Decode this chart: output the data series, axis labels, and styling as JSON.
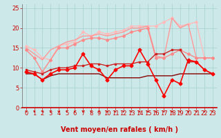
{
  "xlabel": "Vent moyen/en rafales ( km/h )",
  "bg_color": "#cce8e8",
  "grid_color": "#aad4d4",
  "xlim": [
    -0.5,
    23.5
  ],
  "ylim": [
    0,
    26
  ],
  "yticks": [
    0,
    5,
    10,
    15,
    20,
    25
  ],
  "xticks": [
    0,
    1,
    2,
    3,
    4,
    5,
    6,
    7,
    8,
    9,
    10,
    11,
    12,
    13,
    14,
    15,
    16,
    17,
    18,
    19,
    20,
    21,
    22,
    23
  ],
  "series": [
    {
      "x": [
        0,
        1,
        2,
        3,
        4,
        5,
        6,
        7,
        8,
        9,
        10,
        11,
        12,
        13,
        14,
        15,
        16,
        17,
        18,
        19,
        20,
        21,
        22,
        23
      ],
      "y": [
        15.5,
        14.5,
        12.5,
        12.0,
        15.5,
        16.0,
        16.5,
        19.0,
        18.0,
        19.0,
        18.5,
        19.0,
        19.5,
        20.5,
        20.5,
        20.5,
        20.5,
        21.5,
        22.5,
        20.5,
        21.0,
        21.5,
        12.5,
        12.5
      ],
      "color": "#ffbbbb",
      "linewidth": 1.0,
      "marker": "D",
      "markersize": 2.0,
      "zorder": 2
    },
    {
      "x": [
        0,
        1,
        2,
        3,
        4,
        5,
        6,
        7,
        8,
        9,
        10,
        11,
        12,
        13,
        14,
        15,
        16,
        17,
        18,
        19,
        20,
        21,
        22,
        23
      ],
      "y": [
        15.0,
        13.5,
        12.0,
        14.5,
        15.5,
        16.5,
        17.0,
        18.0,
        18.0,
        18.5,
        18.0,
        18.5,
        19.0,
        20.0,
        20.0,
        20.5,
        13.0,
        12.5,
        22.5,
        20.0,
        21.0,
        12.5,
        12.5,
        12.5
      ],
      "color": "#ff9999",
      "linewidth": 1.0,
      "marker": null,
      "markersize": 0,
      "zorder": 2
    },
    {
      "x": [
        0,
        1,
        2,
        3,
        4,
        5,
        6,
        7,
        8,
        9,
        10,
        11,
        12,
        13,
        14,
        15,
        16,
        17,
        18,
        19,
        20,
        21,
        22,
        23
      ],
      "y": [
        14.5,
        12.5,
        9.0,
        12.0,
        15.0,
        15.0,
        16.0,
        17.0,
        17.5,
        17.5,
        17.0,
        17.5,
        18.0,
        19.0,
        19.5,
        20.0,
        12.5,
        12.5,
        13.5,
        14.5,
        13.5,
        12.5,
        12.5,
        12.5
      ],
      "color": "#ff8888",
      "linewidth": 1.0,
      "marker": "D",
      "markersize": 2.0,
      "zorder": 2
    },
    {
      "x": [
        0,
        1,
        2,
        3,
        4,
        5,
        6,
        7,
        8,
        9,
        10,
        11,
        12,
        13,
        14,
        15,
        16,
        17,
        18,
        19,
        20,
        21,
        22,
        23
      ],
      "y": [
        8.5,
        8.5,
        7.0,
        8.0,
        8.5,
        8.5,
        8.5,
        8.5,
        8.5,
        8.5,
        7.5,
        7.5,
        7.5,
        7.5,
        7.5,
        8.0,
        8.0,
        8.0,
        8.0,
        8.5,
        8.5,
        8.5,
        8.5,
        8.5
      ],
      "color": "#880000",
      "linewidth": 1.0,
      "marker": null,
      "markersize": 0,
      "zorder": 2
    },
    {
      "x": [
        0,
        1,
        2,
        3,
        4,
        5,
        6,
        7,
        8,
        9,
        10,
        11,
        12,
        13,
        14,
        15,
        16,
        17,
        18,
        19,
        20,
        21,
        22,
        23
      ],
      "y": [
        9.5,
        9.0,
        8.5,
        9.5,
        10.0,
        10.0,
        10.5,
        10.5,
        11.0,
        11.0,
        10.5,
        11.0,
        11.0,
        11.0,
        11.5,
        11.5,
        13.5,
        13.5,
        14.5,
        14.5,
        11.5,
        11.5,
        9.5,
        8.5
      ],
      "color": "#cc2222",
      "linewidth": 1.0,
      "marker": "s",
      "markersize": 2.0,
      "zorder": 3
    },
    {
      "x": [
        0,
        1,
        2,
        3,
        4,
        5,
        6,
        7,
        8,
        9,
        10,
        11,
        12,
        13,
        14,
        15,
        16,
        17,
        18,
        19,
        20,
        21,
        22,
        23
      ],
      "y": [
        9.0,
        8.5,
        7.0,
        8.5,
        9.5,
        9.5,
        10.0,
        13.5,
        10.5,
        9.5,
        7.0,
        9.5,
        10.5,
        10.5,
        14.5,
        11.0,
        7.0,
        3.0,
        7.0,
        6.0,
        12.0,
        11.5,
        9.5,
        8.5
      ],
      "color": "#ff0000",
      "linewidth": 1.2,
      "marker": "D",
      "markersize": 2.5,
      "zorder": 4
    }
  ],
  "arrow_color": "#cc0000",
  "xlabel_color": "#cc0000",
  "xlabel_fontsize": 7,
  "tick_color": "#cc0000",
  "tick_fontsize": 6
}
